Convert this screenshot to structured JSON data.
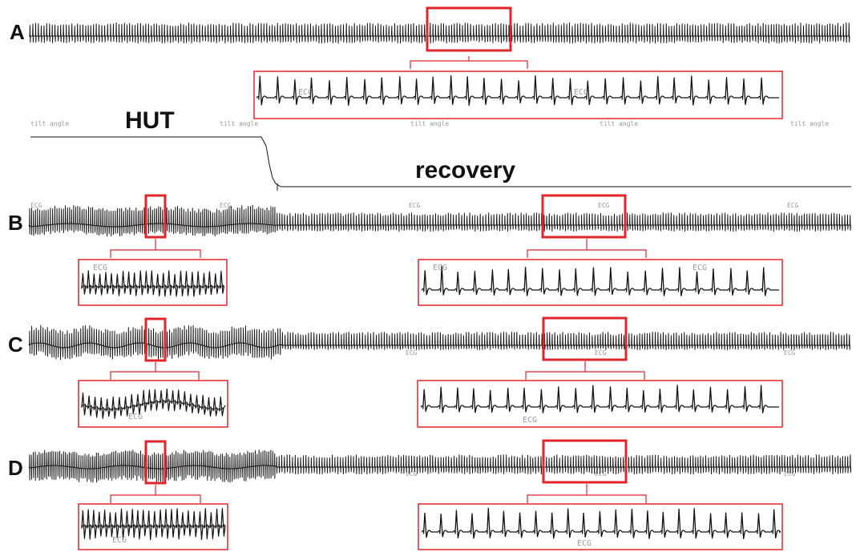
{
  "figure": {
    "phases": {
      "hut": "HUT",
      "recovery": "recovery"
    },
    "tilt_label": "tilt angle",
    "channel_label": "ECG",
    "panels": [
      {
        "id": "A",
        "label": "A"
      },
      {
        "id": "B",
        "label": "B"
      },
      {
        "id": "C",
        "label": "C"
      },
      {
        "id": "D",
        "label": "D"
      }
    ],
    "colors": {
      "highlight": "#e1262b",
      "trace": "#111111",
      "faint_text": "#9a9a9a"
    }
  }
}
